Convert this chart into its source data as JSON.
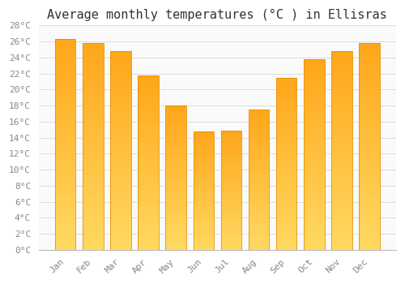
{
  "title": "Average monthly temperatures (°C ) in Ellisras",
  "months": [
    "Jan",
    "Feb",
    "Mar",
    "Apr",
    "May",
    "Jun",
    "Jul",
    "Aug",
    "Sep",
    "Oct",
    "Nov",
    "Dec"
  ],
  "values": [
    26.3,
    25.8,
    24.8,
    21.8,
    18.0,
    14.8,
    14.9,
    17.5,
    21.5,
    23.8,
    24.8,
    25.8
  ],
  "bar_color_top": "#FFD060",
  "bar_color_bottom": "#FFA000",
  "bar_edge_color": "#E89000",
  "ylim": [
    0,
    28
  ],
  "ytick_step": 2,
  "background_color": "#FFFFFF",
  "plot_bg_color": "#FAFAFA",
  "grid_color": "#DDDDDD",
  "title_fontsize": 11,
  "tick_fontsize": 8,
  "font_family": "monospace",
  "tick_color": "#AAAAAA",
  "label_color": "#888888"
}
